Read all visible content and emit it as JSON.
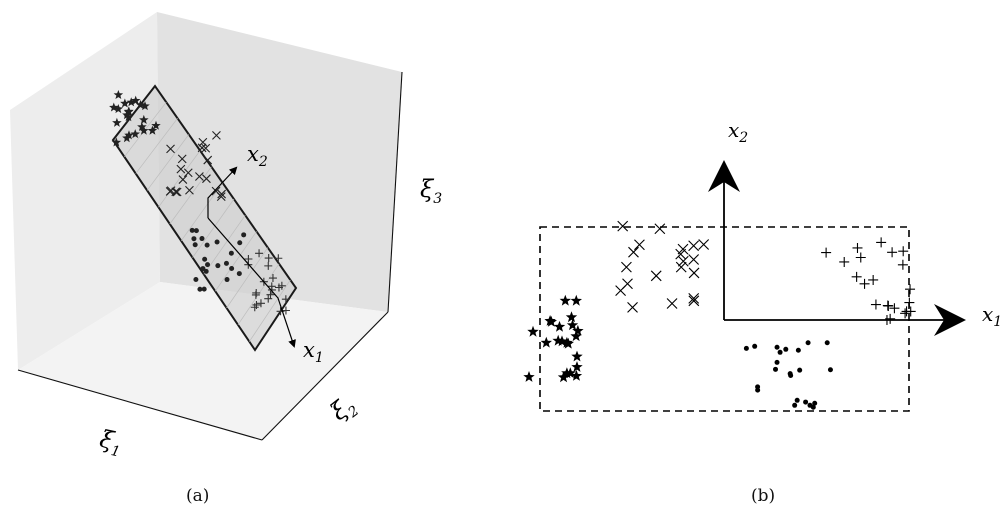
{
  "panel_a": {
    "caption": "(a)",
    "axis_labels": {
      "xi1": "ξ1",
      "xi2": "ξ2",
      "xi3": "ξ3"
    },
    "plane_axis_labels": {
      "x1": "x1",
      "x2": "x2"
    }
  },
  "panel_b": {
    "caption": "(b)",
    "axis_labels": {
      "x1": "x1",
      "x2": "x2"
    }
  },
  "clusters": [
    {
      "marker": "star",
      "count": 22
    },
    {
      "marker": "cross",
      "count": 20
    },
    {
      "marker": "dot",
      "count": 22
    },
    {
      "marker": "plus",
      "count": 22
    }
  ]
}
